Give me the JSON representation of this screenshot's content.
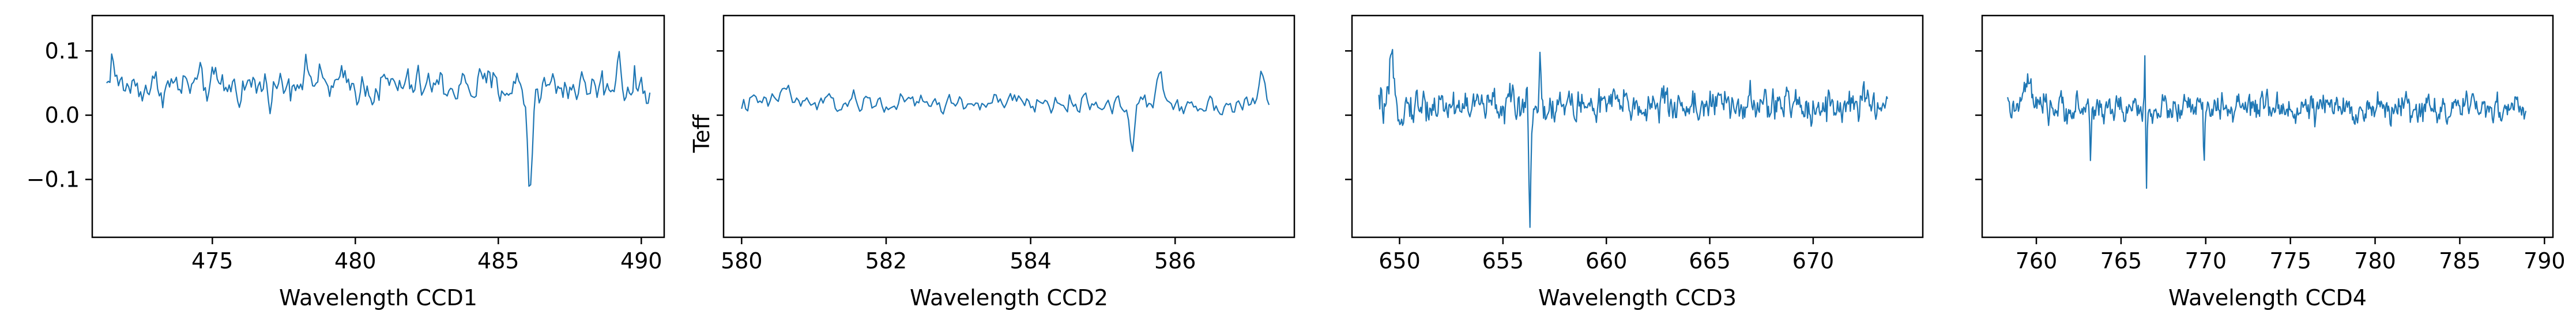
{
  "chart_data": {
    "type": "line",
    "series_color": "#1f77b4",
    "shared_ylabel": "Teff",
    "ylim": [
      -0.19,
      0.155
    ],
    "yticks": [
      -0.1,
      0.0,
      0.1
    ],
    "ytick_labels": [
      "−0.1",
      "0.0",
      "0.1"
    ],
    "panels": [
      {
        "xlabel": "Wavelength CCD1",
        "xlim": [
          470.8,
          490.8
        ],
        "xticks": [
          475,
          480,
          485,
          490
        ],
        "xtick_labels": [
          "475",
          "480",
          "485",
          "490"
        ],
        "x_start": 471.3,
        "x_end": 490.3,
        "n_points": 320,
        "baseline": 0.045,
        "noise": 0.028,
        "features": [
          {
            "x": 486.1,
            "depth": -0.16,
            "width": 0.12
          },
          {
            "x": 471.5,
            "depth": 0.05,
            "width": 0.1
          },
          {
            "x": 478.2,
            "depth": 0.02,
            "width": 0.5
          },
          {
            "x": 489.2,
            "depth": 0.07,
            "width": 0.08
          }
        ]
      },
      {
        "xlabel": "Wavelength CCD2",
        "xlim": [
          579.75,
          587.65
        ],
        "xticks": [
          580,
          582,
          584,
          586
        ],
        "xtick_labels": [
          "580",
          "582",
          "584",
          "586"
        ],
        "x_start": 580.0,
        "x_end": 587.3,
        "n_points": 260,
        "baseline": 0.018,
        "noise": 0.016,
        "features": [
          {
            "x": 585.4,
            "depth": -0.07,
            "width": 0.05
          },
          {
            "x": 585.8,
            "depth": 0.05,
            "width": 0.05
          },
          {
            "x": 587.2,
            "depth": 0.04,
            "width": 0.05
          },
          {
            "x": 580.6,
            "depth": 0.03,
            "width": 0.08
          }
        ]
      },
      {
        "xlabel": "Wavelength CCD3",
        "xlim": [
          647.7,
          675.3
        ],
        "xticks": [
          650,
          655,
          660,
          665,
          670
        ],
        "xtick_labels": [
          "650",
          "655",
          "660",
          "665",
          "670"
        ],
        "x_start": 649.0,
        "x_end": 673.6,
        "n_points": 560,
        "baseline": 0.015,
        "noise": 0.028,
        "features": [
          {
            "x": 656.3,
            "depth": -0.19,
            "width": 0.06
          },
          {
            "x": 656.8,
            "depth": 0.1,
            "width": 0.04
          },
          {
            "x": 649.6,
            "depth": 0.07,
            "width": 0.1
          }
        ]
      },
      {
        "xlabel": "Wavelength CCD4",
        "xlim": [
          756.8,
          790.5
        ],
        "xticks": [
          760,
          765,
          770,
          775,
          780,
          785,
          790
        ],
        "xtick_labels": [
          "760",
          "765",
          "770",
          "775",
          "780",
          "785",
          "790"
        ],
        "x_start": 758.3,
        "x_end": 788.9,
        "n_points": 620,
        "baseline": 0.01,
        "noise": 0.022,
        "features": [
          {
            "x": 766.5,
            "depth": -0.14,
            "width": 0.05
          },
          {
            "x": 766.4,
            "depth": 0.08,
            "width": 0.05
          },
          {
            "x": 763.2,
            "depth": -0.08,
            "width": 0.05
          },
          {
            "x": 769.9,
            "depth": -0.09,
            "width": 0.05
          },
          {
            "x": 759.5,
            "depth": 0.04,
            "width": 0.3
          }
        ]
      }
    ]
  }
}
